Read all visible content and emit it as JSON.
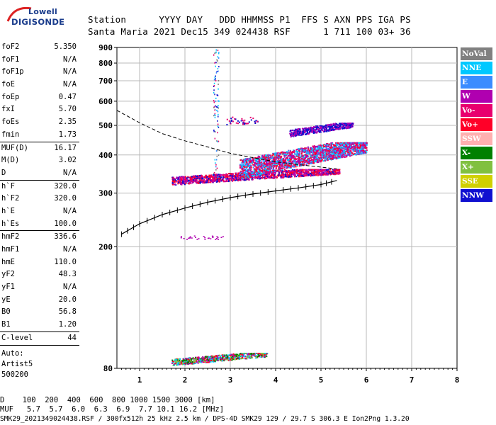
{
  "logo": {
    "top": "Lowell",
    "bottom": "DIGISONDE"
  },
  "header": {
    "line1": "Station      YYYY DAY   DDD HHMMSS P1  FFS S AXN PPS IGA PS",
    "line2": "Santa Maria 2021 Dec15 349 024438 RSF      1 711 100 03+ 36"
  },
  "params": {
    "g1": [
      {
        "k": "foF2",
        "v": "5.350"
      },
      {
        "k": "foF1",
        "v": "N/A"
      },
      {
        "k": "foF1p",
        "v": "N/A"
      },
      {
        "k": "foE",
        "v": "N/A"
      },
      {
        "k": "foEp",
        "v": "0.47"
      },
      {
        "k": "fxI",
        "v": "5.70"
      },
      {
        "k": "foEs",
        "v": "2.35"
      },
      {
        "k": "fmin",
        "v": "1.73"
      }
    ],
    "g2": [
      {
        "k": "MUF(D)",
        "v": "16.17"
      },
      {
        "k": "M(D)",
        "v": "3.02"
      },
      {
        "k": "D",
        "v": "N/A"
      }
    ],
    "g3": [
      {
        "k": "h`F",
        "v": "320.0"
      },
      {
        "k": "h`F2",
        "v": "320.0"
      },
      {
        "k": "h`E",
        "v": "N/A"
      },
      {
        "k": "h`Es",
        "v": "100.0"
      }
    ],
    "g4": [
      {
        "k": "hmF2",
        "v": "336.6"
      },
      {
        "k": "hmF1",
        "v": "N/A"
      },
      {
        "k": "hmE",
        "v": "110.0"
      },
      {
        "k": "yF2",
        "v": "48.3"
      },
      {
        "k": "yF1",
        "v": "N/A"
      },
      {
        "k": "yE",
        "v": "20.0"
      },
      {
        "k": "B0",
        "v": "56.8"
      },
      {
        "k": "B1",
        "v": "1.20"
      }
    ],
    "clevel": {
      "k": "C-level",
      "v": "44"
    },
    "auto": [
      "Auto:",
      "Artist5",
      "500200"
    ]
  },
  "legend": [
    {
      "label": "NoVal",
      "color": "#808080"
    },
    {
      "label": "NNE",
      "color": "#00c8ff"
    },
    {
      "label": "E",
      "color": "#3a8cff"
    },
    {
      "label": "W",
      "color": "#b000b0"
    },
    {
      "label": "Vo-",
      "color": "#e8006e"
    },
    {
      "label": "Vo+",
      "color": "#ff0028"
    },
    {
      "label": "SSW",
      "color": "#ffb0b0"
    },
    {
      "label": "X-",
      "color": "#008000"
    },
    {
      "label": "X+",
      "color": "#80c040"
    },
    {
      "label": "SSE",
      "color": "#d0d000"
    },
    {
      "label": "NNW",
      "color": "#1010d0"
    }
  ],
  "bottom": {
    "row1": "D    100  200  400  600  800 1000 1500 3000 [km]",
    "row2": "MUF   5.7  5.7  6.0  6.3  6.9  7.7 10.1 16.2 [MHz]",
    "row3": "SMK29_2021349024438.RSF / 300fx512h 25 kHz 2.5 km / DPS-4D SMK29 129 / 29.7 S 306.3 E Ion2Png 1.3.20"
  },
  "chart_data": {
    "type": "scatter",
    "title": "",
    "xlabel": "",
    "ylabel": "",
    "xlim": [
      0.5,
      8
    ],
    "ylim": [
      80,
      900
    ],
    "y_scale": "log",
    "grid": true,
    "x_ticks": [
      1,
      2,
      3,
      4,
      5,
      6,
      7,
      8
    ],
    "y_ticks": [
      80,
      200,
      300,
      400,
      500,
      600,
      700,
      800,
      900
    ],
    "dashed_curve": [
      [
        0.5,
        560
      ],
      [
        1.0,
        510
      ],
      [
        1.5,
        470
      ],
      [
        2.0,
        445
      ],
      [
        2.5,
        425
      ],
      [
        3.0,
        405
      ],
      [
        3.5,
        392
      ],
      [
        4.0,
        380
      ],
      [
        4.5,
        372
      ],
      [
        5.0,
        365
      ],
      [
        5.35,
        360
      ]
    ],
    "profile_curve": [
      [
        0.6,
        220
      ],
      [
        1.0,
        238
      ],
      [
        1.5,
        255
      ],
      [
        2.0,
        268
      ],
      [
        2.5,
        280
      ],
      [
        3.0,
        290
      ],
      [
        3.5,
        298
      ],
      [
        4.0,
        305
      ],
      [
        4.5,
        312
      ],
      [
        5.0,
        320
      ],
      [
        5.35,
        330
      ]
    ],
    "echo_clusters": [
      {
        "x": [
          1.7,
          5.4
        ],
        "y": [
          320,
          360
        ],
        "colors": [
          "#ff0028",
          "#e8006e",
          "#b000b0",
          "#1010d0"
        ]
      },
      {
        "x": [
          3.2,
          6.0
        ],
        "y": [
          335,
          440
        ],
        "colors": [
          "#b000b0",
          "#e8006e",
          "#ff0028",
          "#00c8ff",
          "#3a8cff"
        ]
      },
      {
        "x": [
          1.7,
          3.8
        ],
        "y": [
          82,
          90
        ],
        "colors": [
          "#ff0028",
          "#008000",
          "#80c040",
          "#00c8ff",
          "#b000b0"
        ]
      },
      {
        "x": [
          4.3,
          5.7
        ],
        "y": [
          460,
          510
        ],
        "colors": [
          "#1010d0",
          "#b000b0"
        ]
      }
    ]
  }
}
